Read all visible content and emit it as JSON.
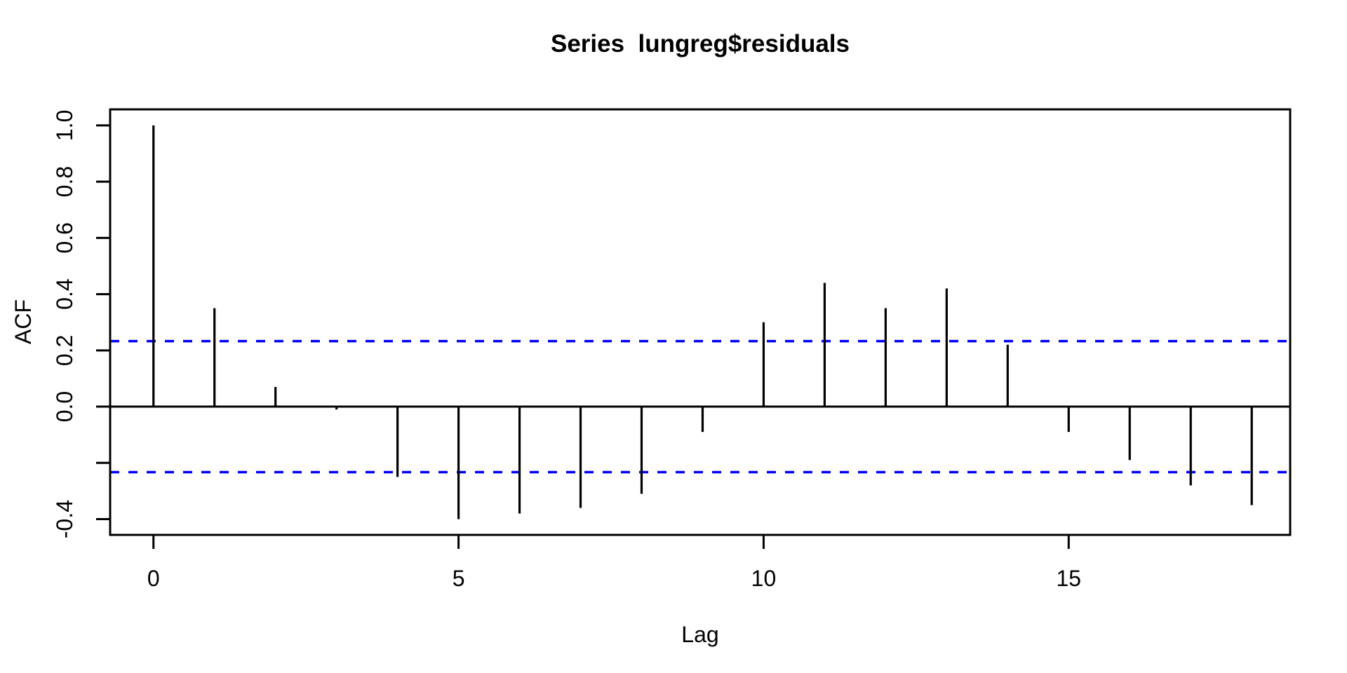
{
  "chart_data": {
    "type": "bar",
    "style": "acf-vertical-sticks",
    "title": "Series  lungreg$residuals",
    "xlabel": "Lag",
    "ylabel": "ACF",
    "x": [
      0,
      1,
      2,
      3,
      4,
      5,
      6,
      7,
      8,
      9,
      10,
      11,
      12,
      13,
      14,
      15,
      16,
      17,
      18
    ],
    "values": [
      1.0,
      0.35,
      0.07,
      -0.01,
      -0.25,
      -0.4,
      -0.38,
      -0.36,
      -0.31,
      -0.09,
      0.3,
      0.44,
      0.35,
      0.42,
      0.22,
      -0.09,
      -0.19,
      -0.28,
      -0.35
    ],
    "confidence_bound": 0.233,
    "confidence_line_style": "dashed",
    "x_ticks": [
      {
        "v": 0,
        "label": "0"
      },
      {
        "v": 5,
        "label": "5"
      },
      {
        "v": 10,
        "label": "10"
      },
      {
        "v": 15,
        "label": "15"
      }
    ],
    "y_ticks": [
      {
        "v": 1.0,
        "label": "1.0"
      },
      {
        "v": 0.8,
        "label": "0.8"
      },
      {
        "v": 0.6,
        "label": "0.6"
      },
      {
        "v": 0.4,
        "label": "0.4"
      },
      {
        "v": 0.2,
        "label": "0.2"
      },
      {
        "v": 0.0,
        "label": "0.0"
      },
      {
        "v": -0.2,
        "label": ""
      },
      {
        "v": -0.4,
        "label": "-0.4"
      }
    ],
    "xlim": [
      -0.71,
      18.63
    ],
    "ylim": [
      -0.456,
      1.057
    ],
    "grid": false,
    "legend": null,
    "colors": {
      "spike": "#000000",
      "confidence": "#0000FF",
      "axis": "#000000",
      "background": "#FFFFFF"
    }
  }
}
